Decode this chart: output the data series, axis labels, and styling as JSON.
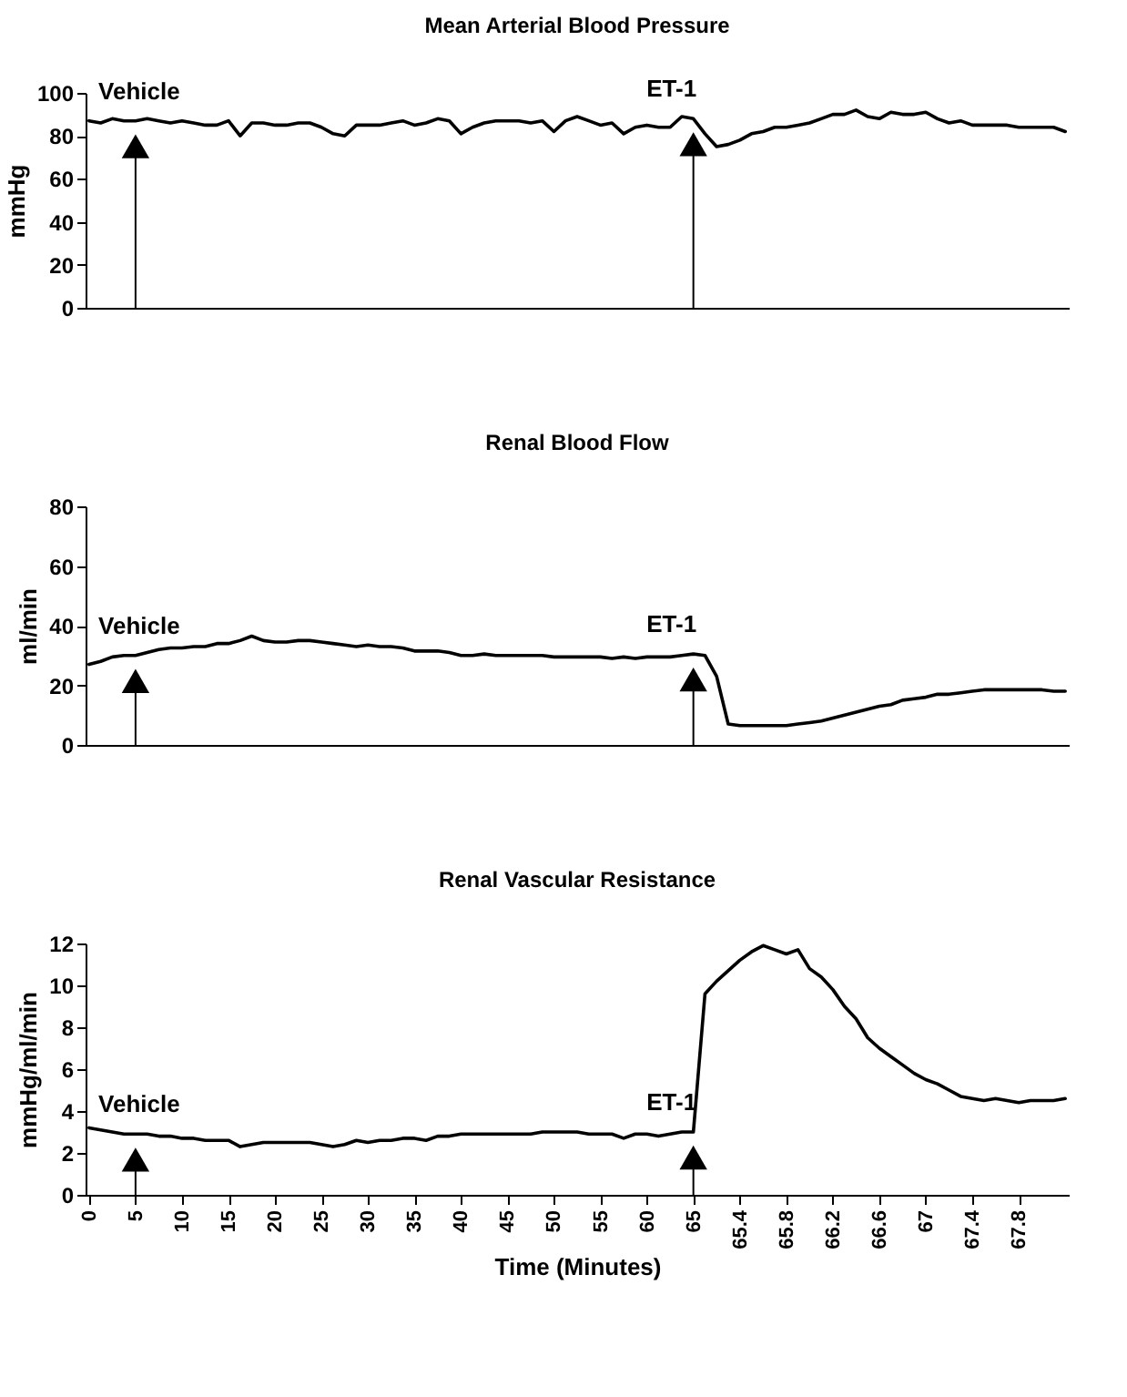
{
  "chart_data": [
    {
      "type": "line",
      "title": "Mean Arterial Blood Pressure",
      "ylabel": "mmHg",
      "color": "#000000",
      "tick_labels": "y",
      "categories": [
        "0",
        null,
        null,
        null,
        "5",
        null,
        null,
        null,
        "10",
        null,
        null,
        null,
        "15",
        null,
        null,
        null,
        "20",
        null,
        null,
        null,
        "25",
        null,
        null,
        null,
        "30",
        null,
        null,
        null,
        "35",
        null,
        null,
        null,
        "40",
        null,
        null,
        null,
        "45",
        null,
        null,
        null,
        "50",
        null,
        null,
        null,
        "55",
        null,
        null,
        null,
        "60",
        null,
        null,
        null,
        "65",
        null,
        null,
        null,
        "65.4",
        null,
        null,
        null,
        "65.8",
        null,
        null,
        null,
        "66.2",
        null,
        null,
        null,
        "66.6",
        null,
        null,
        null,
        "67",
        null,
        null,
        null,
        "67.4",
        null,
        null,
        null,
        "67.8",
        null,
        null,
        null,
        null
      ],
      "values": [
        87,
        86,
        88,
        87,
        87,
        88,
        87,
        86,
        87,
        86,
        85,
        85,
        87,
        80,
        86,
        86,
        85,
        85,
        86,
        86,
        84,
        81,
        80,
        85,
        85,
        85,
        86,
        87,
        85,
        86,
        88,
        87,
        81,
        84,
        86,
        87,
        87,
        87,
        86,
        87,
        82,
        87,
        89,
        87,
        85,
        86,
        81,
        84,
        85,
        84,
        84,
        89,
        88,
        81,
        75,
        76,
        78,
        81,
        82,
        84,
        84,
        85,
        86,
        88,
        90,
        90,
        92,
        89,
        88,
        91,
        90,
        90,
        91,
        88,
        86,
        87,
        85,
        85,
        85,
        85,
        84,
        84,
        84,
        84,
        82
      ],
      "ylim": [
        0,
        100
      ],
      "yticks": [
        0,
        20,
        40,
        60,
        80,
        100
      ],
      "annotations": [
        {
          "text": "Vehicle",
          "x": "5",
          "y": 87
        },
        {
          "text": "ET-1",
          "x": "65",
          "y": 88
        }
      ]
    },
    {
      "type": "line",
      "title": "Renal Blood Flow",
      "ylabel": "ml/min",
      "color": "#000000",
      "tick_labels": "y",
      "categories": [
        "0",
        null,
        null,
        null,
        "5",
        null,
        null,
        null,
        "10",
        null,
        null,
        null,
        "15",
        null,
        null,
        null,
        "20",
        null,
        null,
        null,
        "25",
        null,
        null,
        null,
        "30",
        null,
        null,
        null,
        "35",
        null,
        null,
        null,
        "40",
        null,
        null,
        null,
        "45",
        null,
        null,
        null,
        "50",
        null,
        null,
        null,
        "55",
        null,
        null,
        null,
        "60",
        null,
        null,
        null,
        "65",
        null,
        null,
        null,
        "65.4",
        null,
        null,
        null,
        "65.8",
        null,
        null,
        null,
        "66.2",
        null,
        null,
        null,
        "66.6",
        null,
        null,
        null,
        "67",
        null,
        null,
        null,
        "67.4",
        null,
        null,
        null,
        "67.8",
        null,
        null,
        null,
        null
      ],
      "values": [
        27,
        28,
        29.5,
        30,
        30,
        31,
        32,
        32.5,
        32.5,
        33,
        33,
        34,
        34,
        35,
        36.5,
        35,
        34.5,
        34.5,
        35,
        35,
        34.5,
        34,
        33.5,
        33,
        33.5,
        33,
        33,
        32.5,
        31.5,
        31.5,
        31.5,
        31,
        30,
        30,
        30.5,
        30,
        30,
        30,
        30,
        30,
        29.5,
        29.5,
        29.5,
        29.5,
        29.5,
        29,
        29.5,
        29,
        29.5,
        29.5,
        29.5,
        30,
        30.5,
        30,
        23,
        7,
        6.5,
        6.5,
        6.5,
        6.5,
        6.5,
        7,
        7.5,
        8,
        9,
        10,
        11,
        12,
        13,
        13.5,
        15,
        15.5,
        16,
        17,
        17,
        17.5,
        18,
        18.5,
        18.5,
        18.5,
        18.5,
        18.5,
        18.5,
        18,
        18
      ],
      "ylim": [
        0,
        80
      ],
      "yticks": [
        0,
        20,
        40,
        60,
        80
      ],
      "annotations": [
        {
          "text": "Vehicle",
          "x": "5",
          "y": 30
        },
        {
          "text": "ET-1",
          "x": "65",
          "y": 30.5
        }
      ]
    },
    {
      "type": "line",
      "title": "Renal Vascular Resistance",
      "ylabel": "mmHg/ml/min",
      "xlabel": "Time (Minutes)",
      "color": "#000000",
      "categories": [
        "0",
        null,
        null,
        null,
        "5",
        null,
        null,
        null,
        "10",
        null,
        null,
        null,
        "15",
        null,
        null,
        null,
        "20",
        null,
        null,
        null,
        "25",
        null,
        null,
        null,
        "30",
        null,
        null,
        null,
        "35",
        null,
        null,
        null,
        "40",
        null,
        null,
        null,
        "45",
        null,
        null,
        null,
        "50",
        null,
        null,
        null,
        "55",
        null,
        null,
        null,
        "60",
        null,
        null,
        null,
        "65",
        null,
        null,
        null,
        "65.4",
        null,
        null,
        null,
        "65.8",
        null,
        null,
        null,
        "66.2",
        null,
        null,
        null,
        "66.6",
        null,
        null,
        null,
        "67",
        null,
        null,
        null,
        "67.4",
        null,
        null,
        null,
        "67.8",
        null,
        null,
        null,
        null
      ],
      "values": [
        3.2,
        3.1,
        3.0,
        2.9,
        2.9,
        2.9,
        2.8,
        2.8,
        2.7,
        2.7,
        2.6,
        2.6,
        2.6,
        2.3,
        2.4,
        2.5,
        2.5,
        2.5,
        2.5,
        2.5,
        2.4,
        2.3,
        2.4,
        2.6,
        2.5,
        2.6,
        2.6,
        2.7,
        2.7,
        2.6,
        2.8,
        2.8,
        2.9,
        2.9,
        2.9,
        2.9,
        2.9,
        2.9,
        2.9,
        3.0,
        3.0,
        3.0,
        3.0,
        2.9,
        2.9,
        2.9,
        2.7,
        2.9,
        2.9,
        2.8,
        2.9,
        3.0,
        3.0,
        9.6,
        10.2,
        10.7,
        11.2,
        11.6,
        11.9,
        11.7,
        11.5,
        11.7,
        10.8,
        10.4,
        9.8,
        9.0,
        8.4,
        7.5,
        7.0,
        6.6,
        6.2,
        5.8,
        5.5,
        5.3,
        5.0,
        4.7,
        4.6,
        4.5,
        4.6,
        4.5,
        4.4,
        4.5,
        4.5,
        4.5,
        4.6
      ],
      "ylim": [
        0,
        12
      ],
      "yticks": [
        0,
        2,
        4,
        6,
        8,
        10,
        12
      ],
      "annotations": [
        {
          "text": "Vehicle",
          "x": "5",
          "y": 2.9
        },
        {
          "text": "ET-1",
          "x": "65",
          "y": 3.0
        }
      ]
    }
  ]
}
